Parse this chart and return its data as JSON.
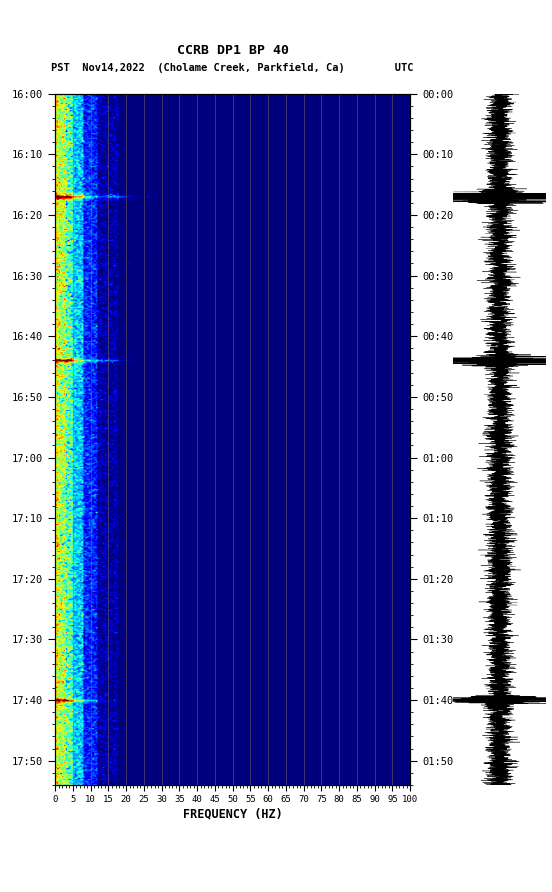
{
  "title_line1": "CCRB DP1 BP 40",
  "title_line2": "PST  Nov14,2022  (Cholame Creek, Parkfield, Ca)        UTC",
  "xlabel": "FREQUENCY (HZ)",
  "freq_ticks": [
    0,
    5,
    10,
    15,
    20,
    25,
    30,
    35,
    40,
    45,
    50,
    55,
    60,
    65,
    70,
    75,
    80,
    85,
    90,
    95,
    100
  ],
  "left_time_labels": [
    "16:00",
    "16:10",
    "16:20",
    "16:30",
    "16:40",
    "16:50",
    "17:00",
    "17:10",
    "17:20",
    "17:30",
    "17:40",
    "17:50"
  ],
  "right_time_labels": [
    "00:00",
    "00:10",
    "00:20",
    "00:30",
    "00:40",
    "00:50",
    "01:00",
    "01:10",
    "01:20",
    "01:30",
    "01:40",
    "01:50"
  ],
  "background_color": "#ffffff",
  "grid_color": "#8B7355",
  "grid_alpha": 0.65,
  "colormap": "jet",
  "fig_width": 5.52,
  "fig_height": 8.92,
  "dpi": 100,
  "duration_minutes": 114,
  "usgs_green_dark": "#1a5e1a",
  "usgs_green_light": "#2e8b2e"
}
